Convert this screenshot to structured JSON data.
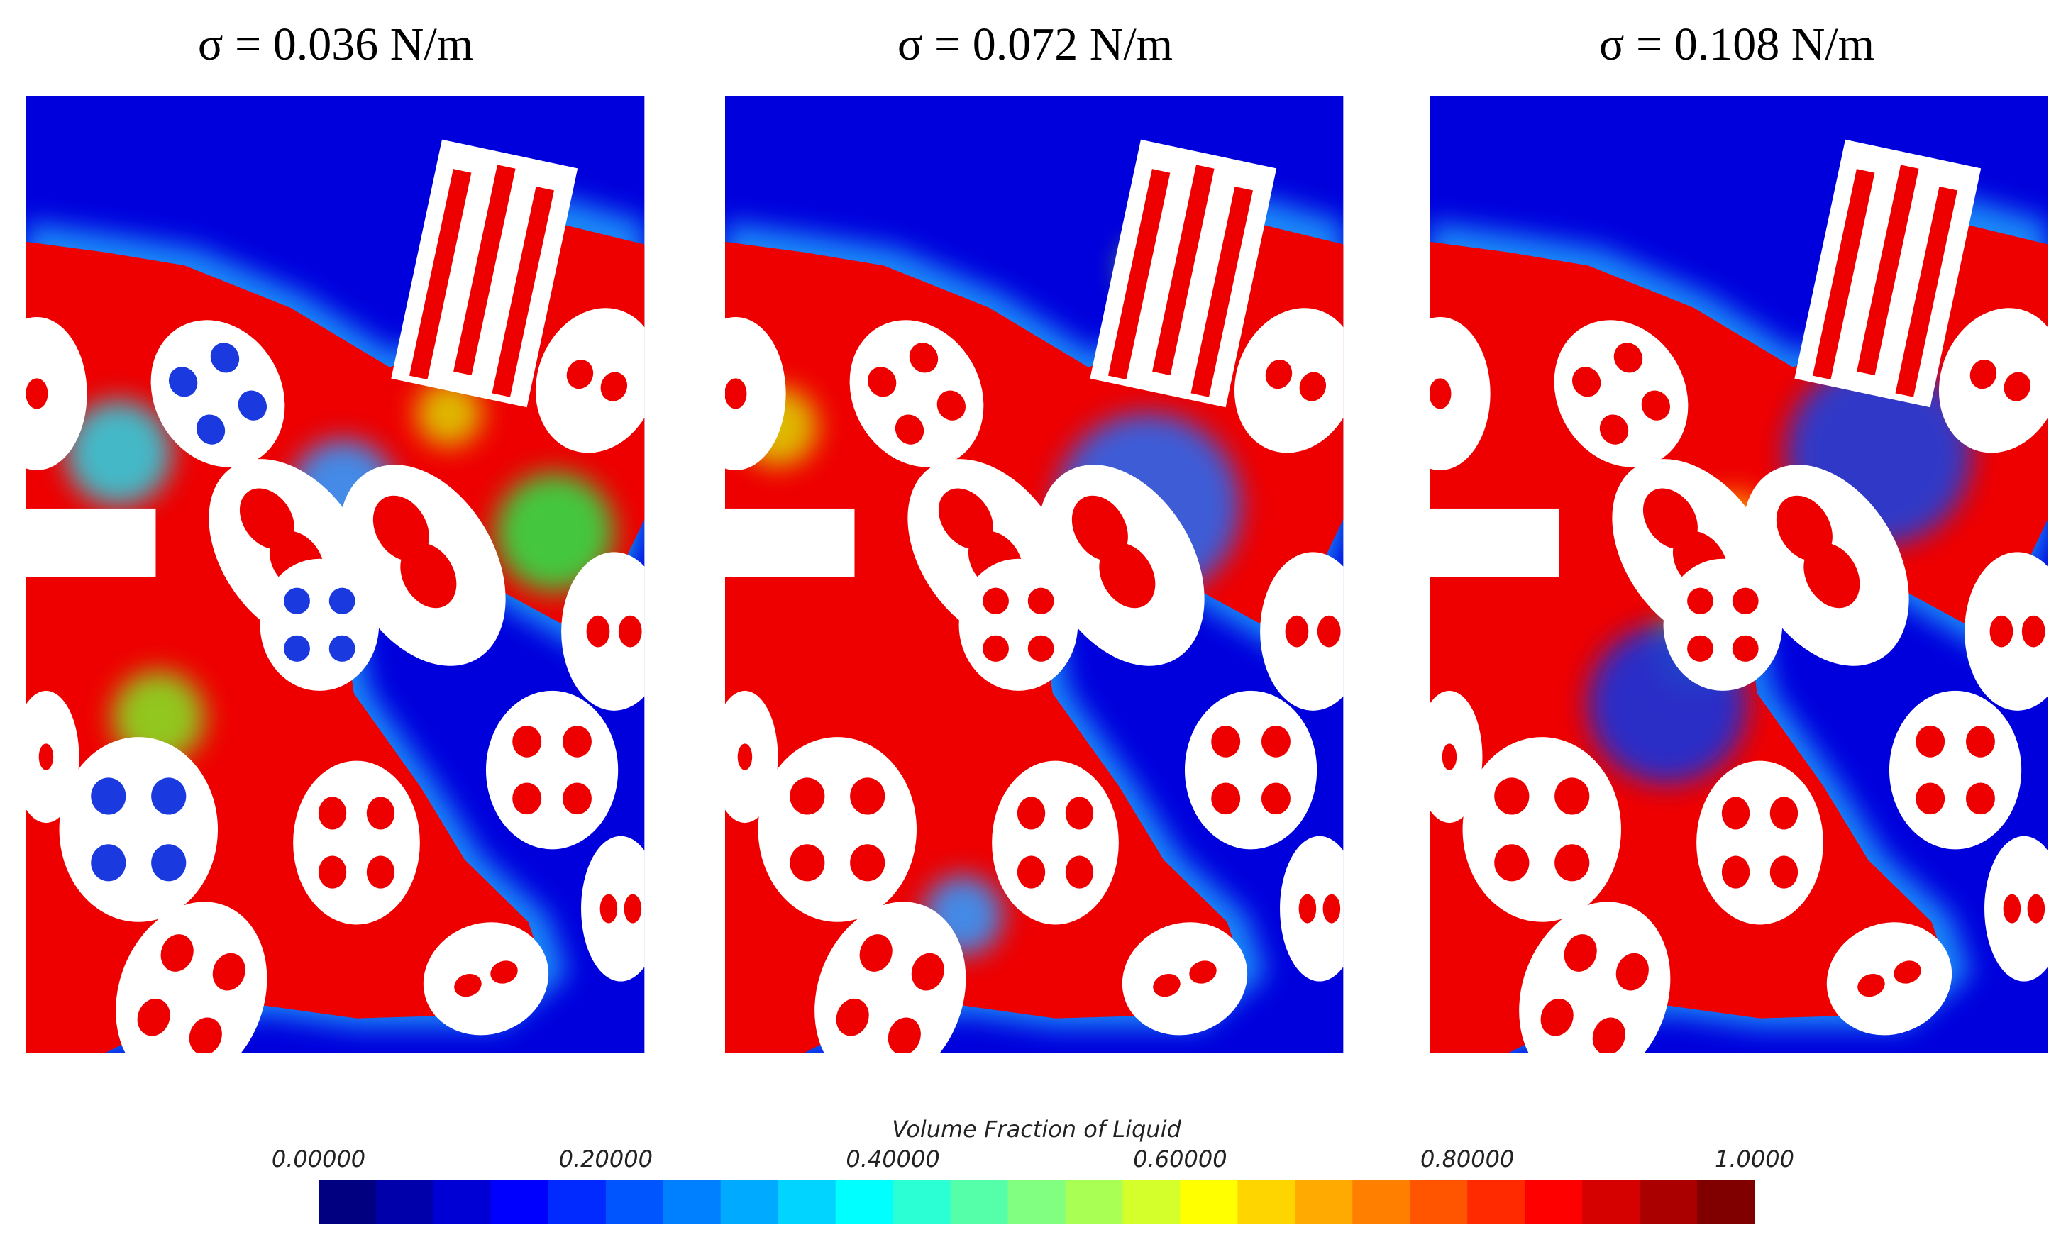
{
  "panels": [
    {
      "title": "σ = 0.036 N/m"
    },
    {
      "title": "σ = 0.072 N/m"
    },
    {
      "title": "σ = 0.108 N/m"
    }
  ],
  "colorbar": {
    "title": "Volume Fraction of Liquid",
    "ticks": [
      "0.00000",
      "0.20000",
      "0.40000",
      "0.60000",
      "0.80000",
      "1.0000"
    ]
  }
}
